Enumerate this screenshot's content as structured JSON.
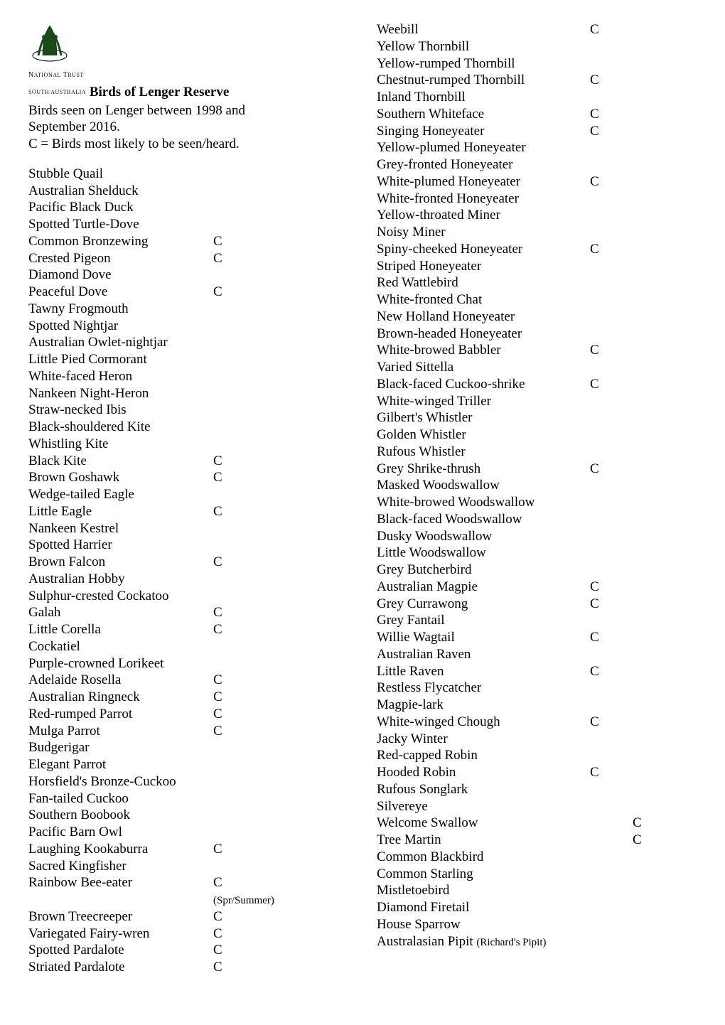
{
  "header": {
    "label_small": "NATIONAL TRUST\nSOUTH AUSTRALIA",
    "title": "Birds of Lenger Reserve",
    "intro_line1": "Birds seen on Lenger between 1998 and",
    "intro_line2": "September 2016.",
    "intro_line3": "C = Birds most likely to be seen/heard."
  },
  "col1": [
    {
      "name": "Stubble Quail",
      "m": ""
    },
    {
      "name": "Australian Shelduck",
      "m": ""
    },
    {
      "name": "Pacific Black Duck",
      "m": ""
    },
    {
      "name": "Spotted Turtle-Dove",
      "m": ""
    },
    {
      "name": "Common Bronzewing",
      "m": "C"
    },
    {
      "name": "Crested Pigeon",
      "m": "C"
    },
    {
      "name": "Diamond Dove",
      "m": ""
    },
    {
      "name": "Peaceful Dove",
      "m": "C"
    },
    {
      "name": "Tawny Frogmouth",
      "m": ""
    },
    {
      "name": "Spotted Nightjar",
      "m": ""
    },
    {
      "name": "Australian Owlet-nightjar",
      "m": ""
    },
    {
      "name": "Little Pied Cormorant",
      "m": ""
    },
    {
      "name": "White-faced Heron",
      "m": ""
    },
    {
      "name": "Nankeen Night-Heron",
      "m": ""
    },
    {
      "name": "Straw-necked Ibis",
      "m": ""
    },
    {
      "name": "Black-shouldered Kite",
      "m": ""
    },
    {
      "name": "Whistling Kite",
      "m": ""
    },
    {
      "name": "Black Kite",
      "m": "C"
    },
    {
      "name": "Brown Goshawk",
      "m": "C"
    },
    {
      "name": "Wedge-tailed Eagle",
      "m": ""
    },
    {
      "name": "Little Eagle",
      "m": "C"
    },
    {
      "name": "Nankeen Kestrel",
      "m": ""
    },
    {
      "name": "Spotted Harrier",
      "m": ""
    },
    {
      "name": "Brown Falcon",
      "m": "C"
    },
    {
      "name": "Australian Hobby",
      "m": ""
    },
    {
      "name": "Sulphur-crested Cockatoo",
      "m": ""
    },
    {
      "name": "Galah",
      "m": "C"
    },
    {
      "name": "Little Corella",
      "m": "C"
    },
    {
      "name": "Cockatiel",
      "m": ""
    },
    {
      "name": "Purple-crowned Lorikeet",
      "m": ""
    },
    {
      "name": "Adelaide Rosella",
      "m": "C"
    },
    {
      "name": "Australian Ringneck",
      "m": "C"
    },
    {
      "name": "Red-rumped Parrot",
      "m": "C"
    },
    {
      "name": "Mulga Parrot",
      "m": "C"
    },
    {
      "name": "Budgerigar",
      "m": ""
    },
    {
      "name": "Elegant Parrot",
      "m": ""
    },
    {
      "name": "Horsfield's Bronze-Cuckoo",
      "m": ""
    },
    {
      "name": "Fan-tailed Cuckoo",
      "m": ""
    },
    {
      "name": "Southern Boobook",
      "m": ""
    },
    {
      "name": "Pacific Barn Owl",
      "m": ""
    },
    {
      "name": "Laughing Kookaburra",
      "m": "C"
    },
    {
      "name": "Sacred Kingfisher",
      "m": ""
    },
    {
      "name": "Rainbow Bee-eater",
      "m": "C",
      "note": "(Spr/Summer)"
    },
    {
      "name": "Brown Treecreeper",
      "m": "C"
    },
    {
      "name": "Variegated Fairy-wren",
      "m": "C"
    },
    {
      "name": "Spotted Pardalote",
      "m": "C"
    },
    {
      "name": "Striated Pardalote",
      "m": "C"
    }
  ],
  "col2": [
    {
      "name": "Weebill",
      "m": "C",
      "m2": ""
    },
    {
      "name": "Yellow Thornbill",
      "m": "",
      "m2": ""
    },
    {
      "name": "Yellow-rumped Thornbill",
      "m": "",
      "m2": ""
    },
    {
      "name": "Chestnut-rumped Thornbill",
      "m": "C",
      "m2": ""
    },
    {
      "name": "Inland Thornbill",
      "m": "",
      "m2": ""
    },
    {
      "name": "Southern Whiteface",
      "m": "C",
      "m2": ""
    },
    {
      "name": "Singing Honeyeater",
      "m": "C",
      "m2": ""
    },
    {
      "name": "Yellow-plumed Honeyeater",
      "m": "",
      "m2": ""
    },
    {
      "name": "Grey-fronted Honeyeater",
      "m": "",
      "m2": ""
    },
    {
      "name": "White-plumed Honeyeater",
      "m": "C",
      "m2": ""
    },
    {
      "name": "White-fronted Honeyeater",
      "m": "",
      "m2": ""
    },
    {
      "name": "Yellow-throated Miner",
      "m": "",
      "m2": ""
    },
    {
      "name": "Noisy Miner",
      "m": "",
      "m2": ""
    },
    {
      "name": "Spiny-cheeked Honeyeater",
      "m": "C",
      "m2": ""
    },
    {
      "name": "Striped Honeyeater",
      "m": "",
      "m2": ""
    },
    {
      "name": "Red Wattlebird",
      "m": "",
      "m2": ""
    },
    {
      "name": "White-fronted Chat",
      "m": "",
      "m2": ""
    },
    {
      "name": "New Holland Honeyeater",
      "m": "",
      "m2": ""
    },
    {
      "name": "Brown-headed Honeyeater",
      "m": "",
      "m2": ""
    },
    {
      "name": "White-browed Babbler",
      "m": "C",
      "m2": ""
    },
    {
      "name": "Varied Sittella",
      "m": "",
      "m2": ""
    },
    {
      "name": "Black-faced Cuckoo-shrike",
      "m": "C",
      "m2": ""
    },
    {
      "name": "White-winged Triller",
      "m": "",
      "m2": ""
    },
    {
      "name": "Gilbert's Whistler",
      "m": "",
      "m2": ""
    },
    {
      "name": "Golden Whistler",
      "m": "",
      "m2": ""
    },
    {
      "name": "Rufous Whistler",
      "m": "",
      "m2": ""
    },
    {
      "name": "Grey Shrike-thrush",
      "m": "C",
      "m2": ""
    },
    {
      "name": "Masked Woodswallow",
      "m": "",
      "m2": ""
    },
    {
      "name": "White-browed Woodswallow",
      "m": "",
      "m2": ""
    },
    {
      "name": "Black-faced Woodswallow",
      "m": "",
      "m2": ""
    },
    {
      "name": "Dusky Woodswallow",
      "m": "",
      "m2": ""
    },
    {
      "name": "Little Woodswallow",
      "m": "",
      "m2": ""
    },
    {
      "name": "Grey Butcherbird",
      "m": "",
      "m2": ""
    },
    {
      "name": "Australian Magpie",
      "m": "C",
      "m2": ""
    },
    {
      "name": "Grey Currawong",
      "m": "C",
      "m2": ""
    },
    {
      "name": "Grey Fantail",
      "m": "",
      "m2": ""
    },
    {
      "name": "Willie Wagtail",
      "m": "C",
      "m2": ""
    },
    {
      "name": "Australian Raven",
      "m": "",
      "m2": ""
    },
    {
      "name": "Little Raven",
      "m": "C",
      "m2": ""
    },
    {
      "name": "Restless Flycatcher",
      "m": "",
      "m2": ""
    },
    {
      "name": "Magpie-lark",
      "m": "",
      "m2": ""
    },
    {
      "name": "White-winged Chough",
      "m": "C",
      "m2": ""
    },
    {
      "name": "Jacky Winter",
      "m": "",
      "m2": ""
    },
    {
      "name": "Red-capped Robin",
      "m": "",
      "m2": ""
    },
    {
      "name": "Hooded Robin",
      "m": "C",
      "m2": ""
    },
    {
      "name": "Rufous Songlark",
      "m": "",
      "m2": ""
    },
    {
      "name": "Silvereye",
      "m": "",
      "m2": ""
    },
    {
      "name": "Welcome Swallow",
      "m": "",
      "m2": "C"
    },
    {
      "name": "Tree Martin",
      "m": "",
      "m2": "C"
    },
    {
      "name": "Common Blackbird",
      "m": "",
      "m2": ""
    },
    {
      "name": "Common Starling",
      "m": "",
      "m2": ""
    },
    {
      "name": "Mistletoebird",
      "m": "",
      "m2": ""
    },
    {
      "name": "Diamond Firetail",
      "m": "",
      "m2": ""
    },
    {
      "name": "House Sparrow",
      "m": "",
      "m2": ""
    }
  ],
  "col2_last": {
    "prefix": "Australasian Pipit ",
    "note": "(Richard's Pipit)"
  }
}
